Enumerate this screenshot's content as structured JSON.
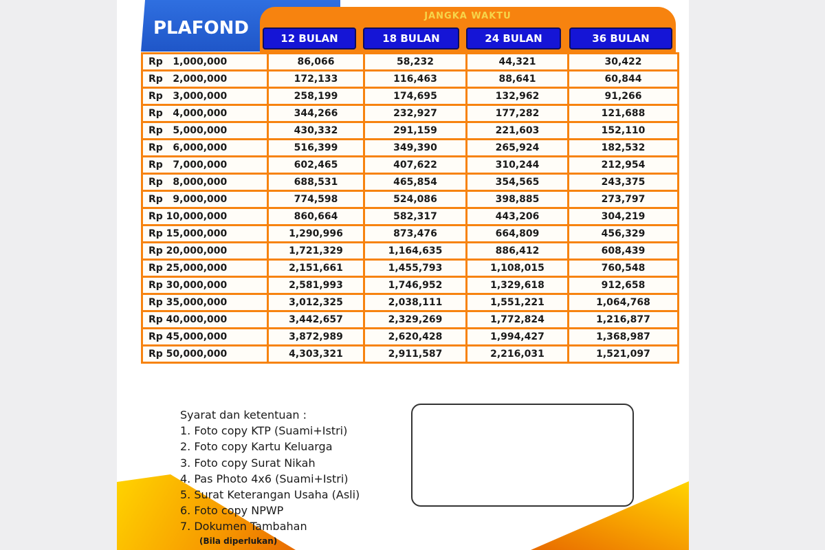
{
  "header": {
    "plafond_label": "PLAFOND",
    "jangka_waktu_label": "JANGKA WAKTU",
    "terms": [
      "12 BULAN",
      "18 BULAN",
      "24 BULAN",
      "36 BULAN"
    ]
  },
  "rows": [
    {
      "plafond": "Rp   1,000,000",
      "values": [
        "86,066",
        "58,232",
        "44,321",
        "30,422"
      ]
    },
    {
      "plafond": "Rp   2,000,000",
      "values": [
        "172,133",
        "116,463",
        "88,641",
        "60,844"
      ]
    },
    {
      "plafond": "Rp   3,000,000",
      "values": [
        "258,199",
        "174,695",
        "132,962",
        "91,266"
      ]
    },
    {
      "plafond": "Rp   4,000,000",
      "values": [
        "344,266",
        "232,927",
        "177,282",
        "121,688"
      ]
    },
    {
      "plafond": "Rp   5,000,000",
      "values": [
        "430,332",
        "291,159",
        "221,603",
        "152,110"
      ]
    },
    {
      "plafond": "Rp   6,000,000",
      "values": [
        "516,399",
        "349,390",
        "265,924",
        "182,532"
      ]
    },
    {
      "plafond": "Rp   7,000,000",
      "values": [
        "602,465",
        "407,622",
        "310,244",
        "212,954"
      ]
    },
    {
      "plafond": "Rp   8,000,000",
      "values": [
        "688,531",
        "465,854",
        "354,565",
        "243,375"
      ]
    },
    {
      "plafond": "Rp   9,000,000",
      "values": [
        "774,598",
        "524,086",
        "398,885",
        "273,797"
      ]
    },
    {
      "plafond": "Rp 10,000,000",
      "values": [
        "860,664",
        "582,317",
        "443,206",
        "304,219"
      ]
    },
    {
      "plafond": "Rp 15,000,000",
      "values": [
        "1,290,996",
        "873,476",
        "664,809",
        "456,329"
      ]
    },
    {
      "plafond": "Rp 20,000,000",
      "values": [
        "1,721,329",
        "1,164,635",
        "886,412",
        "608,439"
      ]
    },
    {
      "plafond": "Rp 25,000,000",
      "values": [
        "2,151,661",
        "1,455,793",
        "1,108,015",
        "760,548"
      ]
    },
    {
      "plafond": "Rp 30,000,000",
      "values": [
        "2,581,993",
        "1,746,952",
        "1,329,618",
        "912,658"
      ]
    },
    {
      "plafond": "Rp 35,000,000",
      "values": [
        "3,012,325",
        "2,038,111",
        "1,551,221",
        "1,064,768"
      ]
    },
    {
      "plafond": "Rp 40,000,000",
      "values": [
        "3,442,657",
        "2,329,269",
        "1,772,824",
        "1,216,877"
      ]
    },
    {
      "plafond": "Rp 45,000,000",
      "values": [
        "3,872,989",
        "2,620,428",
        "1,994,427",
        "1,368,987"
      ]
    },
    {
      "plafond": "Rp 50,000,000",
      "values": [
        "4,303,321",
        "2,911,587",
        "2,216,031",
        "1,521,097"
      ]
    }
  ],
  "requirements": {
    "title": "Syarat dan ketentuan :",
    "items": [
      "1. Foto copy KTP (Suami+Istri)",
      "2. Foto copy Kartu Keluarga",
      "3. Foto copy Surat Nikah",
      "4. Pas Photo 4x6 (Suami+Istri)",
      "5. Surat Keterangan Usaha (Asli)",
      "6. Foto copy NPWP",
      "7. Dokumen Tambahan"
    ],
    "note": "(Bila diperlukan)"
  },
  "colors": {
    "orange": "#f7830f",
    "blue": "#1515d6",
    "plafond_blue": "#2f6fe0",
    "yellow": "#f6d54a"
  }
}
